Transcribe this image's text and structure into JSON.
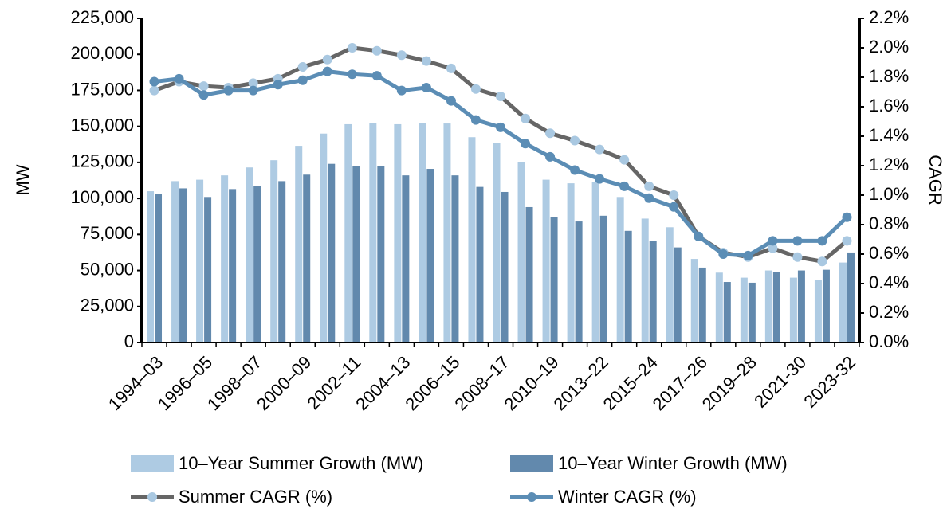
{
  "chart_data": {
    "type": "bar",
    "ylabel": "MW",
    "y2label": "CAGR",
    "categories": [
      "1994–03",
      null,
      "1996–05",
      null,
      "1998–07",
      null,
      "2000–09",
      null,
      "2002–11",
      null,
      "2004–13",
      null,
      "2006–15",
      null,
      "2008–17",
      null,
      "2010–19",
      null,
      "2013–22",
      null,
      "2015–24",
      null,
      "2017–26",
      null,
      "2019–28",
      null,
      "2021-30",
      null,
      "2023-32"
    ],
    "ylim": [
      0,
      225000
    ],
    "yticks": [
      0,
      {
        "value": 25000,
        "label": "25,000"
      },
      {
        "value": 50000,
        "label": "50,000"
      },
      {
        "value": 75000,
        "label": "75,000"
      },
      {
        "value": 100000,
        "label": "100,000"
      },
      {
        "value": 125000,
        "label": "125,000"
      },
      {
        "value": 150000,
        "label": "150,000"
      },
      {
        "value": 175000,
        "label": "175,000"
      },
      {
        "value": 200000,
        "label": "200,000"
      },
      {
        "value": 225000,
        "label": "225,000"
      }
    ],
    "y2lim": [
      0,
      2.2
    ],
    "y2ticks": [
      {
        "value": 0,
        "label": "0.0%"
      },
      {
        "value": 0.2,
        "label": "0.2%"
      },
      {
        "value": 0.4,
        "label": "0.4%"
      },
      {
        "value": 0.6,
        "label": "0.6%"
      },
      {
        "value": 0.8,
        "label": "0.8%"
      },
      {
        "value": 1.0,
        "label": "1.0%"
      },
      {
        "value": 1.2,
        "label": "1.2%"
      },
      {
        "value": 1.4,
        "label": "1.4%"
      },
      {
        "value": 1.6,
        "label": "1.6%"
      },
      {
        "value": 1.8,
        "label": "1.8%"
      },
      {
        "value": 2.0,
        "label": "2.0%"
      },
      {
        "value": 2.2,
        "label": "2.2%"
      }
    ],
    "grid": false,
    "legend": "bottom",
    "series": [
      {
        "name": "10–Year Summer Growth (MW)",
        "type": "bar",
        "color": "#aecbe3",
        "values": [
          105000,
          112000,
          113000,
          116000,
          121500,
          126500,
          136500,
          145000,
          151500,
          152500,
          151500,
          152500,
          152000,
          142500,
          138500,
          125000,
          113000,
          110500,
          111500,
          101000,
          86000,
          80000,
          58000,
          48500,
          45000,
          50000,
          45000,
          43500,
          55500
        ]
      },
      {
        "name": "10–Year Winter Growth (MW)",
        "type": "bar",
        "color": "#6289ad",
        "values": [
          103000,
          107000,
          101000,
          106500,
          108500,
          112000,
          116500,
          124000,
          122500,
          122500,
          116000,
          120500,
          116000,
          108000,
          104500,
          94000,
          87000,
          84000,
          88000,
          77500,
          70500,
          66000,
          52000,
          42000,
          41500,
          49000,
          50000,
          50500,
          62500
        ]
      },
      {
        "name": "Summer CAGR (%)",
        "type": "line",
        "axis": "y2",
        "color": "#666666",
        "marker_color": "#a9c8e1",
        "values": [
          1.71,
          1.77,
          1.74,
          1.73,
          1.76,
          1.79,
          1.87,
          1.92,
          2.0,
          1.98,
          1.95,
          1.91,
          1.86,
          1.72,
          1.67,
          1.52,
          1.42,
          1.37,
          1.31,
          1.24,
          1.06,
          1.0,
          0.72,
          0.61,
          0.58,
          0.64,
          0.58,
          0.55,
          0.69
        ]
      },
      {
        "name": "Winter CAGR (%)",
        "type": "line",
        "axis": "y2",
        "color": "#5b8db5",
        "marker_color": "#5b8db5",
        "values": [
          1.77,
          1.79,
          1.68,
          1.71,
          1.71,
          1.75,
          1.78,
          1.84,
          1.82,
          1.81,
          1.71,
          1.73,
          1.64,
          1.51,
          1.46,
          1.35,
          1.26,
          1.17,
          1.11,
          1.06,
          0.98,
          0.92,
          0.72,
          0.6,
          0.59,
          0.69,
          0.69,
          0.69,
          0.85
        ]
      }
    ]
  }
}
